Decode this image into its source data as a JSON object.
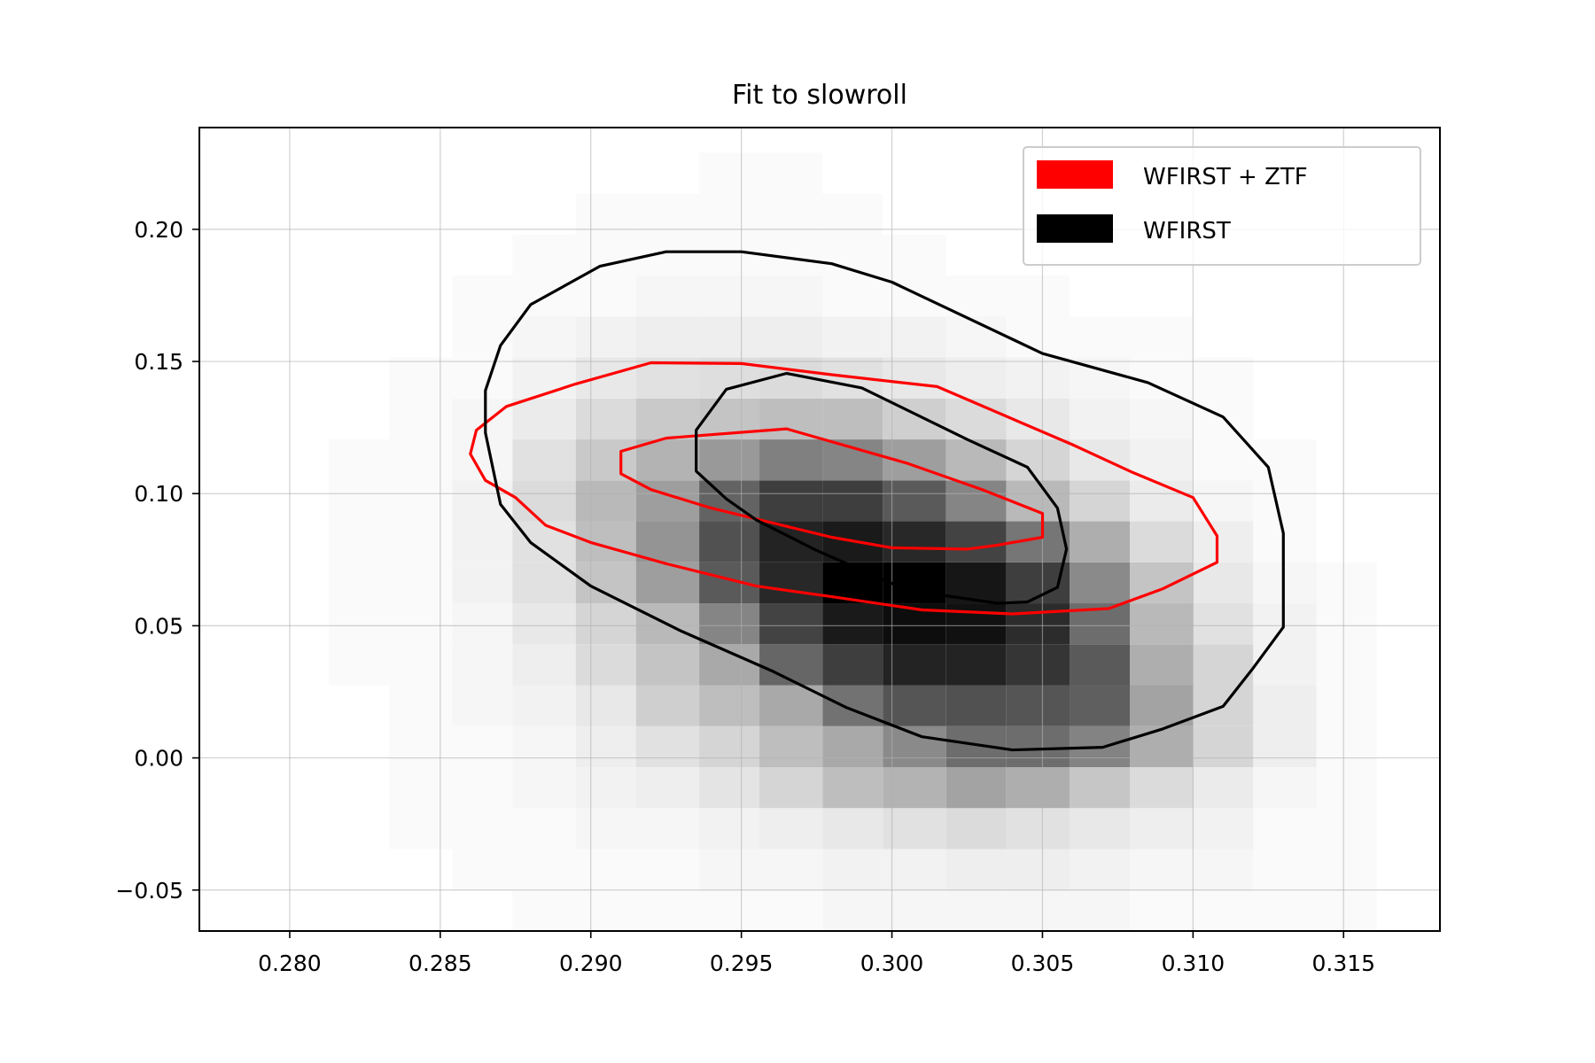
{
  "chart_data": {
    "type": "heatmap",
    "title": "Fit to slowroll",
    "xlabel": "",
    "ylabel": "",
    "xlim": [
      0.277,
      0.3182
    ],
    "ylim": [
      -0.0655,
      0.2385
    ],
    "xticks": [
      0.28,
      0.285,
      0.29,
      0.295,
      0.3,
      0.305,
      0.31,
      0.315
    ],
    "xtick_labels": [
      "0.280",
      "0.285",
      "0.290",
      "0.295",
      "0.300",
      "0.305",
      "0.310",
      "0.315"
    ],
    "yticks": [
      -0.05,
      0.0,
      0.05,
      0.1,
      0.15,
      0.2
    ],
    "ytick_labels": [
      "−0.05",
      "0.00",
      "0.05",
      "0.10",
      "0.15",
      "0.20"
    ],
    "grid": true,
    "legend_position": "top-right",
    "heatmap": {
      "x_edges": [
        0.2792,
        0.2813,
        0.2833,
        0.2854,
        0.2874,
        0.2895,
        0.2915,
        0.2936,
        0.2956,
        0.2977,
        0.2997,
        0.3018,
        0.3038,
        0.3059,
        0.3079,
        0.31,
        0.312,
        0.3141,
        0.3161
      ],
      "y_edges": [
        -0.0655,
        -0.05,
        -0.0345,
        -0.019,
        -0.0035,
        0.012,
        0.0275,
        0.043,
        0.0585,
        0.074,
        0.0895,
        0.105,
        0.1205,
        0.136,
        0.1515,
        0.167,
        0.1825,
        0.198,
        0.2135,
        0.229
      ],
      "colormap": "Greys",
      "counts": [
        [
          0,
          0,
          0,
          0,
          1,
          1,
          1,
          1,
          1,
          2,
          2,
          2,
          2,
          2,
          1,
          1,
          1,
          1
        ],
        [
          0,
          0,
          0,
          1,
          1,
          1,
          1,
          2,
          2,
          3,
          3,
          4,
          4,
          3,
          2,
          2,
          1,
          1
        ],
        [
          0,
          0,
          1,
          1,
          1,
          2,
          2,
          3,
          4,
          6,
          8,
          10,
          8,
          6,
          4,
          3,
          1,
          1
        ],
        [
          0,
          0,
          1,
          1,
          2,
          3,
          4,
          7,
          12,
          20,
          24,
          30,
          26,
          17,
          10,
          5,
          2,
          1
        ],
        [
          0,
          0,
          1,
          1,
          2,
          4,
          8,
          12,
          20,
          28,
          40,
          52,
          52,
          43,
          26,
          12,
          4,
          1
        ],
        [
          0,
          0,
          1,
          2,
          3,
          6,
          14,
          20,
          28,
          50,
          62,
          64,
          62,
          58,
          30,
          12,
          4,
          1
        ],
        [
          0,
          1,
          1,
          2,
          4,
          10,
          18,
          28,
          55,
          72,
          84,
          84,
          76,
          60,
          26,
          12,
          3,
          1
        ],
        [
          0,
          1,
          1,
          2,
          6,
          12,
          22,
          42,
          70,
          88,
          94,
          92,
          80,
          52,
          22,
          8,
          3,
          1
        ],
        [
          0,
          1,
          1,
          3,
          8,
          18,
          32,
          60,
          82,
          100,
          100,
          90,
          72,
          40,
          18,
          6,
          2,
          1
        ],
        [
          0,
          1,
          1,
          3,
          8,
          20,
          36,
          64,
          84,
          88,
          82,
          70,
          48,
          26,
          10,
          4,
          1,
          0
        ],
        [
          0,
          1,
          1,
          3,
          10,
          22,
          32,
          56,
          72,
          72,
          60,
          42,
          22,
          12,
          5,
          2,
          1,
          0
        ],
        [
          0,
          1,
          1,
          2,
          8,
          16,
          24,
          34,
          44,
          42,
          32,
          22,
          12,
          6,
          3,
          1,
          1,
          0
        ],
        [
          0,
          0,
          1,
          2,
          5,
          10,
          16,
          18,
          20,
          20,
          14,
          10,
          6,
          3,
          2,
          1,
          0,
          0
        ],
        [
          0,
          0,
          1,
          1,
          3,
          6,
          8,
          9,
          10,
          8,
          6,
          4,
          3,
          2,
          1,
          1,
          0,
          0
        ],
        [
          0,
          0,
          0,
          1,
          2,
          3,
          4,
          4,
          4,
          3,
          3,
          2,
          1,
          1,
          1,
          0,
          0,
          0
        ],
        [
          0,
          0,
          0,
          1,
          1,
          1,
          2,
          2,
          2,
          1,
          1,
          1,
          1,
          0,
          0,
          0,
          0,
          0
        ],
        [
          0,
          0,
          0,
          0,
          1,
          1,
          1,
          1,
          1,
          1,
          1,
          0,
          0,
          0,
          0,
          0,
          0,
          0
        ],
        [
          0,
          0,
          0,
          0,
          0,
          1,
          1,
          1,
          1,
          1,
          0,
          0,
          0,
          0,
          0,
          0,
          0,
          0
        ],
        [
          0,
          0,
          0,
          0,
          0,
          0,
          0,
          1,
          1,
          0,
          0,
          0,
          0,
          0,
          0,
          0,
          0,
          0
        ]
      ]
    },
    "series": [
      {
        "name": "WFIRST + ZTF",
        "color": "#ff0000",
        "contours": [
          [
            [
              0.2965,
              0.1245
            ],
            [
              0.3005,
              0.1115
            ],
            [
              0.303,
              0.1015
            ],
            [
              0.305,
              0.0925
            ],
            [
              0.305,
              0.0835
            ],
            [
              0.3035,
              0.0805
            ],
            [
              0.3025,
              0.079
            ],
            [
              0.3,
              0.0795
            ],
            [
              0.298,
              0.0835
            ],
            [
              0.296,
              0.089
            ],
            [
              0.294,
              0.0945
            ],
            [
              0.292,
              0.1015
            ],
            [
              0.291,
              0.1075
            ],
            [
              0.291,
              0.116
            ],
            [
              0.2925,
              0.121
            ],
            [
              0.2965,
              0.1245
            ]
          ],
          [
            [
              0.292,
              0.1495
            ],
            [
              0.295,
              0.1492
            ],
            [
              0.298,
              0.145
            ],
            [
              0.3015,
              0.1405
            ],
            [
              0.306,
              0.1185
            ],
            [
              0.308,
              0.108
            ],
            [
              0.31,
              0.0985
            ],
            [
              0.3108,
              0.084
            ],
            [
              0.3108,
              0.074
            ],
            [
              0.309,
              0.064
            ],
            [
              0.3072,
              0.0565
            ],
            [
              0.304,
              0.0545
            ],
            [
              0.301,
              0.056
            ],
            [
              0.298,
              0.061
            ],
            [
              0.2955,
              0.065
            ],
            [
              0.2925,
              0.0735
            ],
            [
              0.29,
              0.0815
            ],
            [
              0.2885,
              0.088
            ],
            [
              0.2875,
              0.0985
            ],
            [
              0.2865,
              0.105
            ],
            [
              0.286,
              0.115
            ],
            [
              0.2862,
              0.124
            ],
            [
              0.2872,
              0.133
            ],
            [
              0.2895,
              0.1415
            ],
            [
              0.292,
              0.1495
            ]
          ]
        ]
      },
      {
        "name": "WFIRST",
        "color": "#000000",
        "contours": [
          [
            [
              0.2965,
              0.1455
            ],
            [
              0.299,
              0.14
            ],
            [
              0.3025,
              0.1205
            ],
            [
              0.3045,
              0.11
            ],
            [
              0.3055,
              0.0945
            ],
            [
              0.3058,
              0.079
            ],
            [
              0.3055,
              0.0645
            ],
            [
              0.3045,
              0.059
            ],
            [
              0.3035,
              0.0585
            ],
            [
              0.3005,
              0.0635
            ],
            [
              0.2975,
              0.0785
            ],
            [
              0.2955,
              0.09
            ],
            [
              0.2945,
              0.098
            ],
            [
              0.2935,
              0.1085
            ],
            [
              0.2935,
              0.124
            ],
            [
              0.2945,
              0.1395
            ],
            [
              0.2965,
              0.1455
            ]
          ],
          [
            [
              0.2925,
              0.1915
            ],
            [
              0.295,
              0.1915
            ],
            [
              0.298,
              0.187
            ],
            [
              0.3,
              0.18
            ],
            [
              0.305,
              0.153
            ],
            [
              0.3085,
              0.142
            ],
            [
              0.311,
              0.129
            ],
            [
              0.3125,
              0.11
            ],
            [
              0.313,
              0.085
            ],
            [
              0.313,
              0.0495
            ],
            [
              0.312,
              0.034
            ],
            [
              0.311,
              0.0195
            ],
            [
              0.309,
              0.011
            ],
            [
              0.307,
              0.004
            ],
            [
              0.304,
              0.003
            ],
            [
              0.301,
              0.008
            ],
            [
              0.2985,
              0.019
            ],
            [
              0.296,
              0.033
            ],
            [
              0.293,
              0.048
            ],
            [
              0.29,
              0.065
            ],
            [
              0.288,
              0.0815
            ],
            [
              0.287,
              0.096
            ],
            [
              0.2865,
              0.123
            ],
            [
              0.2865,
              0.139
            ],
            [
              0.287,
              0.156
            ],
            [
              0.288,
              0.1715
            ],
            [
              0.2903,
              0.186
            ],
            [
              0.2925,
              0.1915
            ]
          ]
        ]
      }
    ]
  }
}
